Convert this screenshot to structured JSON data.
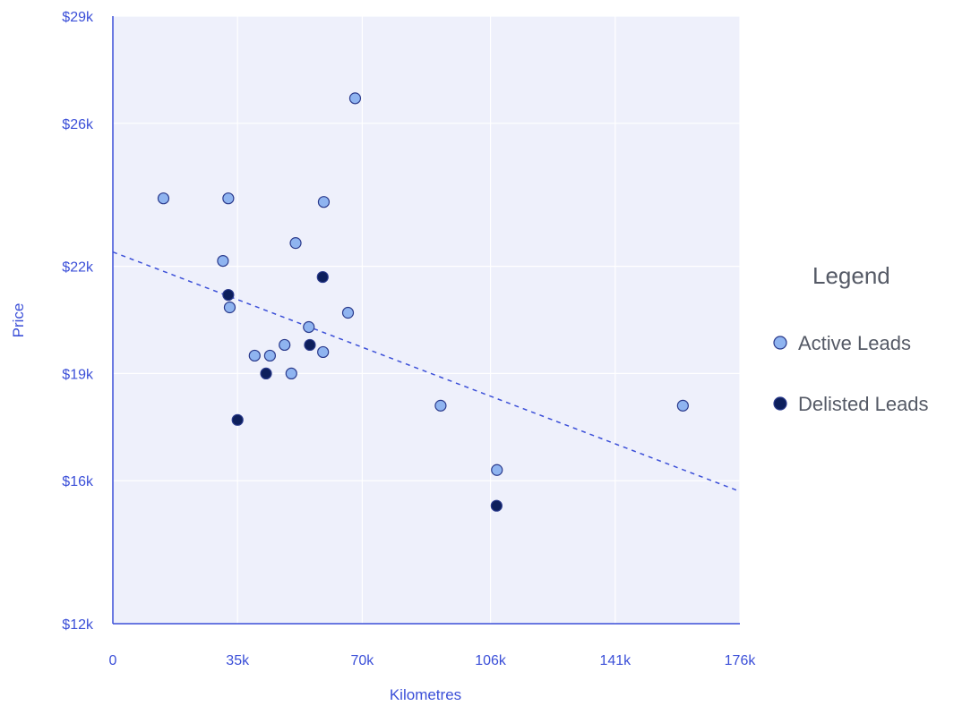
{
  "chart_data": {
    "type": "scatter",
    "title": "",
    "xlabel": "Kilometres",
    "ylabel": "Price",
    "xlim": [
      0,
      176000
    ],
    "ylim": [
      12000,
      29000
    ],
    "x_ticks": [
      {
        "value": 0,
        "label": "0"
      },
      {
        "value": 35000,
        "label": "35k"
      },
      {
        "value": 70000,
        "label": "70k"
      },
      {
        "value": 106000,
        "label": "106k"
      },
      {
        "value": 141000,
        "label": "141k"
      },
      {
        "value": 176000,
        "label": "176k"
      }
    ],
    "y_ticks": [
      {
        "value": 12000,
        "label": "$12k"
      },
      {
        "value": 16000,
        "label": "$16k"
      },
      {
        "value": 19000,
        "label": "$19k"
      },
      {
        "value": 22000,
        "label": "$22k"
      },
      {
        "value": 26000,
        "label": "$26k"
      },
      {
        "value": 29000,
        "label": "$29k"
      }
    ],
    "grid": true,
    "legend": {
      "title": "Legend",
      "position": "right"
    },
    "series": [
      {
        "name": "Active Leads",
        "color": "#8fb4f0",
        "points": [
          [
            14200,
            23900
          ],
          [
            32400,
            23900
          ],
          [
            30900,
            22150
          ],
          [
            32800,
            20850
          ],
          [
            51300,
            22650
          ],
          [
            59200,
            23800
          ],
          [
            68000,
            26700
          ],
          [
            55000,
            20300
          ],
          [
            66000,
            20700
          ],
          [
            48200,
            19800
          ],
          [
            39800,
            19500
          ],
          [
            44100,
            19500
          ],
          [
            59000,
            19600
          ],
          [
            50100,
            19000
          ],
          [
            92000,
            18100
          ],
          [
            107800,
            16300
          ],
          [
            160000,
            18100
          ]
        ]
      },
      {
        "name": "Delisted Leads",
        "color": "#0d1f5c",
        "points": [
          [
            32400,
            21200
          ],
          [
            58900,
            21700
          ],
          [
            55300,
            19800
          ],
          [
            43000,
            19000
          ],
          [
            35000,
            17700
          ],
          [
            107700,
            15300
          ]
        ]
      }
    ],
    "trendline": {
      "style": "dashed",
      "color": "#3b4fd8",
      "from": [
        0,
        22400
      ],
      "to": [
        176000,
        15700
      ]
    }
  }
}
